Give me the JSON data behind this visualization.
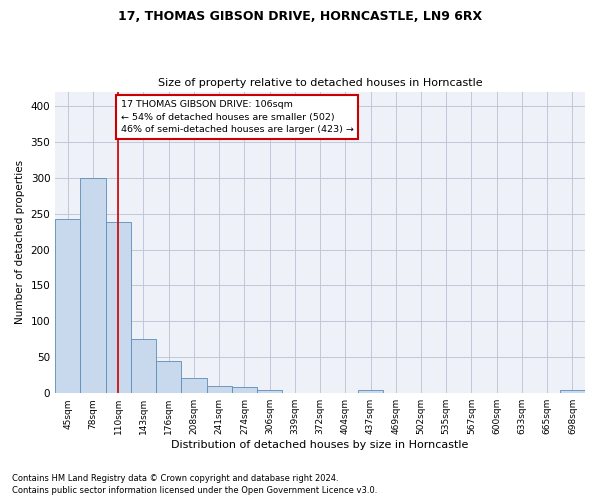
{
  "title1": "17, THOMAS GIBSON DRIVE, HORNCASTLE, LN9 6RX",
  "title2": "Size of property relative to detached houses in Horncastle",
  "xlabel": "Distribution of detached houses by size in Horncastle",
  "ylabel": "Number of detached properties",
  "bar_color": "#c9d9ed",
  "bar_edge_color": "#5b8db8",
  "gridcolor": "#c0c8d8",
  "bg_color": "#eef2f8",
  "vline_color": "#cc0000",
  "vline_x": 2,
  "annotation_box_color": "#cc0000",
  "annotation_lines": [
    "17 THOMAS GIBSON DRIVE: 106sqm",
    "← 54% of detached houses are smaller (502)",
    "46% of semi-detached houses are larger (423) →"
  ],
  "categories": [
    "45sqm",
    "78sqm",
    "110sqm",
    "143sqm",
    "176sqm",
    "208sqm",
    "241sqm",
    "274sqm",
    "306sqm",
    "339sqm",
    "372sqm",
    "404sqm",
    "437sqm",
    "469sqm",
    "502sqm",
    "535sqm",
    "567sqm",
    "600sqm",
    "633sqm",
    "665sqm",
    "698sqm"
  ],
  "values": [
    242,
    299,
    238,
    75,
    45,
    21,
    10,
    8,
    5,
    0,
    0,
    0,
    5,
    0,
    0,
    0,
    0,
    0,
    0,
    0,
    4
  ],
  "ylim": [
    0,
    420
  ],
  "yticks": [
    0,
    50,
    100,
    150,
    200,
    250,
    300,
    350,
    400
  ],
  "footer1": "Contains HM Land Registry data © Crown copyright and database right 2024.",
  "footer2": "Contains public sector information licensed under the Open Government Licence v3.0."
}
